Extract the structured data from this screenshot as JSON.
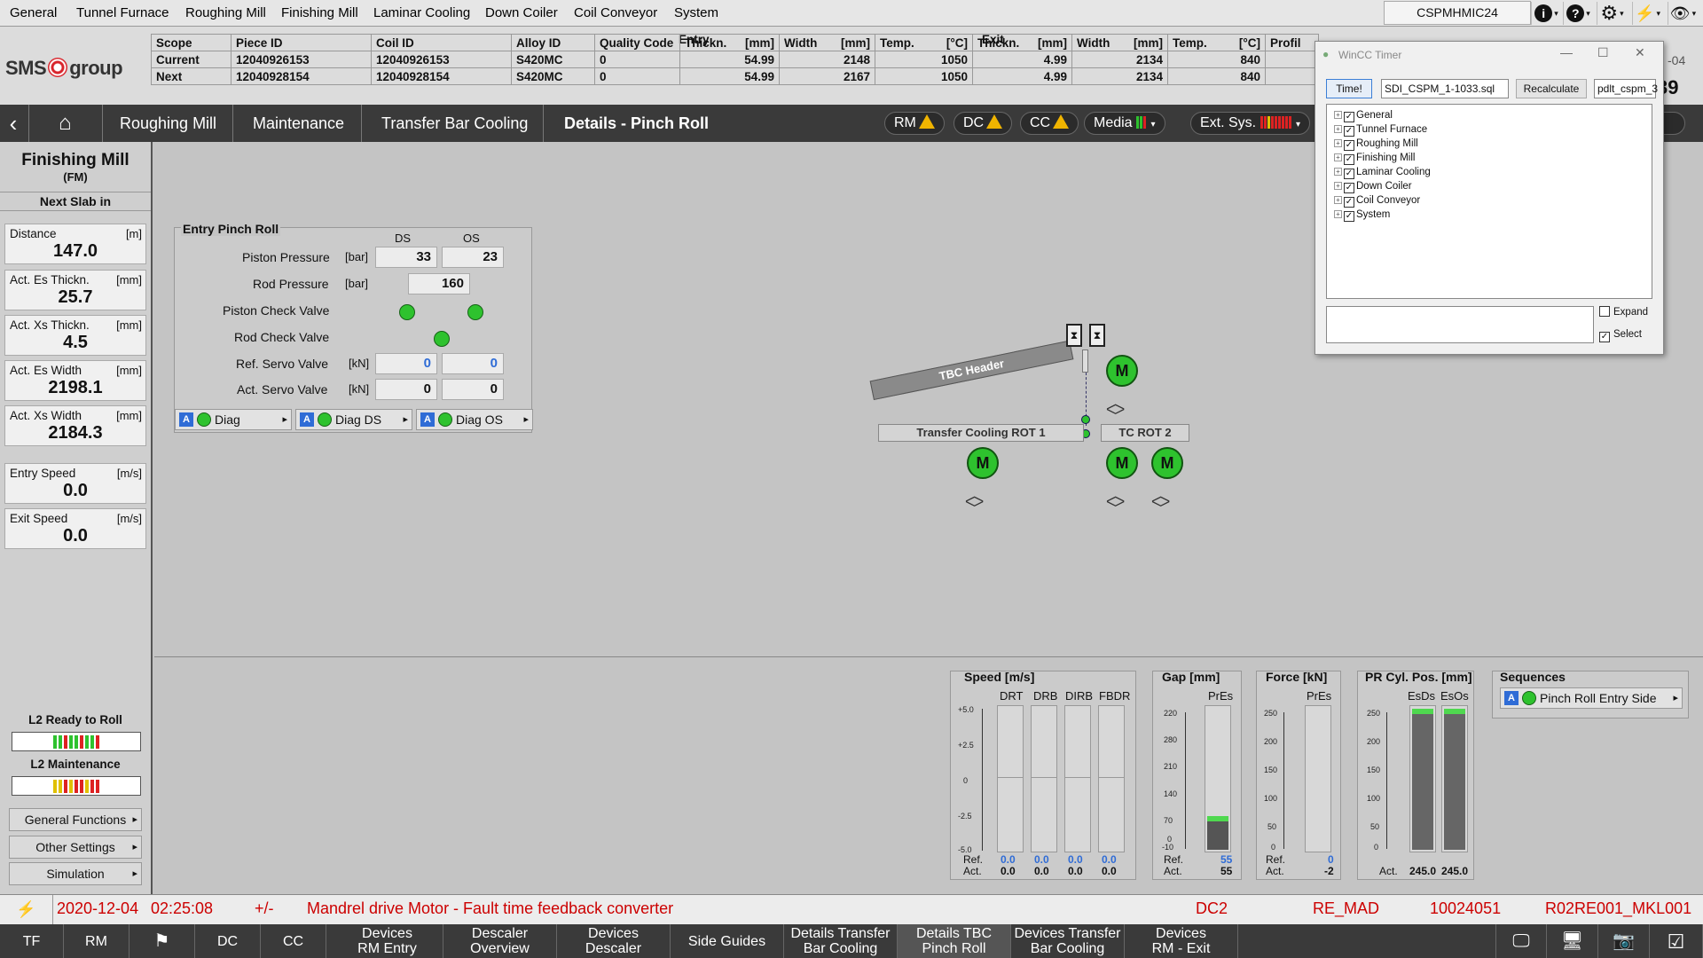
{
  "menu": [
    "General",
    "Tunnel Furnace",
    "Roughing Mill",
    "Finishing Mill",
    "Laminar Cooling",
    "Down Coiler",
    "Coil Conveyor",
    "System"
  ],
  "host": "CSPMHMIC24",
  "top_icons": [
    "info-icon",
    "help-icon",
    "gear-icon",
    "power-icon",
    "eye-icon"
  ],
  "logo": {
    "left": "SMS",
    "right": "group"
  },
  "scope": {
    "headers": [
      "Scope",
      "Piece ID",
      "Coil ID",
      "Alloy ID",
      "Quality Code",
      "Thickn.",
      "[mm]",
      "Width",
      "[mm]",
      "Temp.",
      "[°C]",
      "Thickn.",
      "[mm]",
      "Width",
      "[mm]",
      "Temp.",
      "[°C]",
      "Profil"
    ],
    "group_entry": "Entry",
    "group_exit": "Exit",
    "rows": [
      {
        "scope": "Current",
        "piece": "12040926153",
        "coil": "12040926153",
        "alloy": "S420MC",
        "quality": "0",
        "en_thk": "54.99",
        "en_w": "2148",
        "en_t": "1050",
        "ex_thk": "4.99",
        "ex_w": "2134",
        "ex_t": "840"
      },
      {
        "scope": "Next",
        "piece": "12040928154",
        "coil": "12040928154",
        "alloy": "S420MC",
        "quality": "0",
        "en_thk": "54.99",
        "en_w": "2167",
        "en_t": "1050",
        "ex_thk": "4.99",
        "ex_w": "2134",
        "ex_t": "840"
      }
    ]
  },
  "header_right": {
    "date_part": "-04",
    "time_part": "39",
    "dc_label": "DC"
  },
  "nav": {
    "crumbs": [
      "Roughing Mill",
      "Maintenance",
      "Transfer Bar Cooling",
      "Details - Pinch Roll"
    ],
    "pills": [
      "RM",
      "DC",
      "CC",
      "Media",
      "Ext. Sys."
    ]
  },
  "left": {
    "title": "Finishing Mill",
    "subtitle": "(FM)",
    "next_slab": "Next Slab in",
    "boxes": [
      {
        "label": "Distance",
        "unit": "[m]",
        "value": "147.0"
      },
      {
        "label": "Act. Es Thickn.",
        "unit": "[mm]",
        "value": "25.7"
      },
      {
        "label": "Act. Xs Thickn.",
        "unit": "[mm]",
        "value": "4.5"
      },
      {
        "label": "Act. Es Width",
        "unit": "[mm]",
        "value": "2198.1"
      },
      {
        "label": "Act. Xs Width",
        "unit": "[mm]",
        "value": "2184.3"
      },
      {
        "label": "Entry Speed",
        "unit": "[m/s]",
        "value": "0.0"
      },
      {
        "label": "Exit Speed",
        "unit": "[m/s]",
        "value": "0.0"
      }
    ],
    "l2_ready": "L2 Ready to Roll",
    "l2_maint": "L2 Maintenance",
    "buttons": [
      "General Functions",
      "Other Settings",
      "Simulation"
    ]
  },
  "pinch": {
    "title": "Entry Pinch Roll",
    "col_ds": "DS",
    "col_os": "OS",
    "piston_pressure": {
      "label": "Piston Pressure",
      "unit": "[bar]",
      "ds": "33",
      "os": "23"
    },
    "rod_pressure": {
      "label": "Rod Pressure",
      "unit": "[bar]",
      "value": "160"
    },
    "piston_check": "Piston Check Valve",
    "rod_check": "Rod Check Valve",
    "ref_servo": {
      "label": "Ref. Servo Valve",
      "unit": "[kN]",
      "ds": "0",
      "os": "0"
    },
    "act_servo": {
      "label": "Act. Servo Valve",
      "unit": "[kN]",
      "ds": "0",
      "os": "0"
    },
    "diag": [
      "Diag",
      "Diag DS",
      "Diag OS"
    ],
    "a_badge": "A"
  },
  "diagram": {
    "header_label": "TBC Header",
    "rot1": "Transfer Cooling ROT 1",
    "rot2": "TC ROT 2",
    "motor": "M"
  },
  "gauges": {
    "speed": {
      "title": "Speed  [m/s]",
      "cols": [
        "DRT",
        "DRB",
        "DIRB",
        "FBDR"
      ],
      "ticks": [
        "+5.0",
        "+2.5",
        "0",
        "-2.5",
        "-5.0"
      ],
      "ref": [
        "0.0",
        "0.0",
        "0.0",
        "0.0"
      ],
      "act": [
        "0.0",
        "0.0",
        "0.0",
        "0.0"
      ]
    },
    "gap": {
      "title": "Gap  [mm]",
      "col": "PrEs",
      "ticks": [
        "220",
        "280",
        "210",
        "140",
        "70",
        "0",
        "-10"
      ],
      "ref": "55",
      "act": "55",
      "level_fraction": 0.2
    },
    "force": {
      "title": "Force  [kN]",
      "col": "PrEs",
      "ticks": [
        "250",
        "200",
        "150",
        "100",
        "50",
        "0"
      ],
      "ref": "0",
      "act": "-2"
    },
    "pr_cyl": {
      "title": "PR Cyl. Pos.  [mm]",
      "cols": [
        "EsDs",
        "EsOs"
      ],
      "ticks": [
        "250",
        "200",
        "150",
        "100",
        "50",
        "0"
      ],
      "act": [
        "245.0",
        "245.0"
      ],
      "level_fraction": 0.98
    },
    "ref_label": "Ref.",
    "act_label": "Act."
  },
  "sequences": {
    "title": "Sequences",
    "item": "Pinch Roll Entry Side"
  },
  "status": {
    "date": "2020-12-04",
    "time": "02:25:08",
    "sign": "+/-",
    "message": "Mandrel drive Motor - Fault time feedback converter",
    "area": "DC2",
    "source": "RE_MAD",
    "code": "10024051",
    "tag": "R02RE001_MKL001"
  },
  "taskbar": [
    {
      "label": "TF"
    },
    {
      "label": "RM"
    },
    {
      "label": ""
    },
    {
      "label": "DC"
    },
    {
      "label": "CC"
    },
    {
      "label": "Devices\nRM Entry"
    },
    {
      "label": "Descaler\nOverview"
    },
    {
      "label": "Devices\nDescaler"
    },
    {
      "label": "Side Guides"
    },
    {
      "label": "Details Transfer\nBar Cooling"
    },
    {
      "label": "Details TBC\nPinch Roll"
    },
    {
      "label": "Devices Transfer\nBar Cooling"
    },
    {
      "label": "Devices\nRM - Exit"
    }
  ],
  "popup": {
    "title": "WinCC Timer",
    "time_btn": "Time!",
    "file": "SDI_CSPM_1-1033.sql",
    "recalc": "Recalculate",
    "field2": "pdlt_cspm_3",
    "tree": [
      "General",
      "Tunnel Furnace",
      "Roughing Mill",
      "Finishing Mill",
      "Laminar Cooling",
      "Down Coiler",
      "Coil Conveyor",
      "System"
    ],
    "expand": "Expand",
    "select": "Select"
  }
}
